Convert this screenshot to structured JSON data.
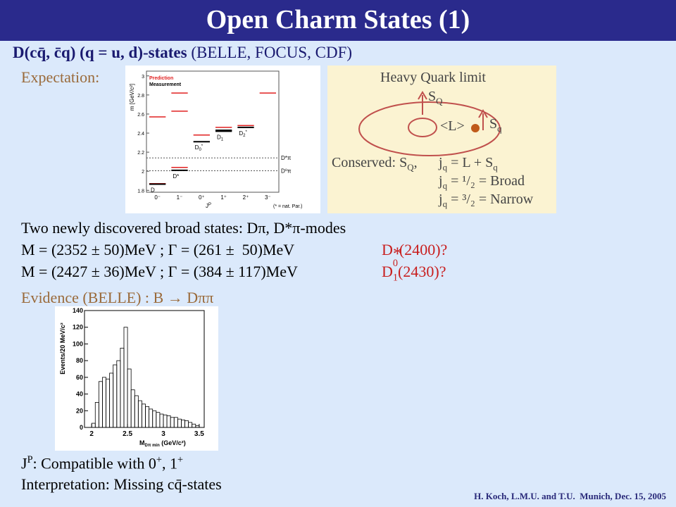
{
  "header": {
    "title": "Open Charm States (1)"
  },
  "subtitle": {
    "bold": "D(cq̄, c̄q) (q = u, d)-states",
    "rest": "(BELLE, FOCUS, CDF)"
  },
  "expectation": "Expectation:",
  "level_figure": {
    "ylabel": "m [GeV/c²]",
    "ylim": [
      1.78,
      3.05
    ],
    "yticks": [
      1.8,
      2,
      2.2,
      2.4,
      2.6,
      2.8,
      3
    ],
    "legend": [
      {
        "name": "Prediction",
        "color": "#e02020"
      },
      {
        "name": "Measurement",
        "color": "#000000"
      }
    ],
    "states": [
      {
        "jp": "0⁻",
        "prediction": [
          1.87,
          2.57
        ],
        "measurement": [
          1.865
        ],
        "label": {
          "main": "D"
        }
      },
      {
        "jp": "1⁻",
        "prediction": [
          2.04,
          2.63,
          2.82
        ],
        "measurement": [
          2.01
        ],
        "label": {
          "main": "D*"
        }
      },
      {
        "jp": "0⁺",
        "prediction": [
          2.38
        ],
        "measurement": [
          2.31
        ],
        "label": {
          "main": "D",
          "sub": "0",
          "sup": "*"
        }
      },
      {
        "jp": "1⁺",
        "prediction": [
          2.46
        ],
        "measurement": [
          2.42,
          2.43
        ],
        "label": {
          "main": "D",
          "sub": "1"
        }
      },
      {
        "jp": "2⁺",
        "prediction": [
          2.48
        ],
        "measurement": [
          2.46
        ],
        "label": {
          "main": "D",
          "sub": "2",
          "sup": "*"
        }
      },
      {
        "jp": "3⁻",
        "prediction": [
          2.82
        ],
        "measurement": []
      }
    ],
    "thresholds": [
      {
        "label": "D*π",
        "mass": 2.14
      },
      {
        "label": "D⁰π",
        "mass": 2.005
      }
    ],
    "xlabel": {
      "main": "J",
      "sup": "P"
    },
    "note": "(* = nat. Par.)"
  },
  "hq_figure": {
    "title": "Heavy Quark limit",
    "sQ": {
      "main": "S",
      "sub": "Q"
    },
    "L": "<L>",
    "sq": {
      "main": "S",
      "sub": "q"
    },
    "conserved": {
      "main": "Conserved: S",
      "sub": "Q",
      "rest": ","
    },
    "lines": [
      {
        "main": "j",
        "sub": "q",
        "rest": " = L + S",
        "sub2": "q"
      },
      {
        "main": "j",
        "sub": "q",
        "rest": " = ¹/₂ = Broad"
      },
      {
        "main": "j",
        "sub": "q",
        "rest": " = ³/₂ = Narrow"
      }
    ]
  },
  "body": {
    "line1": "Two newly discovered broad states: Dπ, D*π-modes",
    "line2": "M = (2352 ± 50)MeV ; Γ = (261 ±  50)MeV",
    "state2": {
      "main": "D",
      "sub": "0",
      "sup": "*",
      "rest": "(2400)?"
    },
    "line3": "M = (2427 ± 36)MeV ; Γ = (384 ± 117)MeV",
    "state3": {
      "main": "D",
      "sub": "1",
      "rest": "(2430)?"
    },
    "evidence": "Evidence (BELLE) : B → Dππ"
  },
  "histogram": {
    "ylabel": "Events/20 MeV/c²",
    "xlabel": {
      "main": "M",
      "sub": "Dπ min",
      "rest": " (GeV/c²)"
    },
    "xlim": [
      1.9,
      3.57
    ],
    "ylim": [
      0,
      140
    ],
    "xticks": [
      2,
      2.5,
      3,
      3.5
    ],
    "yticks": [
      0,
      20,
      40,
      60,
      80,
      100,
      120,
      140
    ],
    "bins": [
      2.0,
      2.05,
      2.1,
      2.15,
      2.2,
      2.25,
      2.3,
      2.35,
      2.4,
      2.45,
      2.5,
      2.55,
      2.6,
      2.65,
      2.7,
      2.75,
      2.8,
      2.85,
      2.9,
      2.95,
      3.0,
      3.05,
      3.1,
      3.15,
      3.2,
      3.25,
      3.3,
      3.35,
      3.4,
      3.45,
      3.5
    ],
    "counts": [
      5,
      30,
      55,
      60,
      58,
      65,
      75,
      80,
      95,
      120,
      70,
      45,
      38,
      32,
      28,
      25,
      22,
      20,
      18,
      16,
      15,
      14,
      12,
      12,
      10,
      9,
      8,
      6,
      4,
      2
    ]
  },
  "bottom": {
    "jp": {
      "main": "J",
      "sup": "P",
      "rest": ": Compatible with 0",
      "sup2": "+",
      "rest2": ", 1",
      "sup3": "+"
    },
    "interpretation": "Interpretation: Missing cq̄-states"
  },
  "footer": "H. Koch, L.M.U. and T.U.  Munich, Dec. 15, 2005"
}
